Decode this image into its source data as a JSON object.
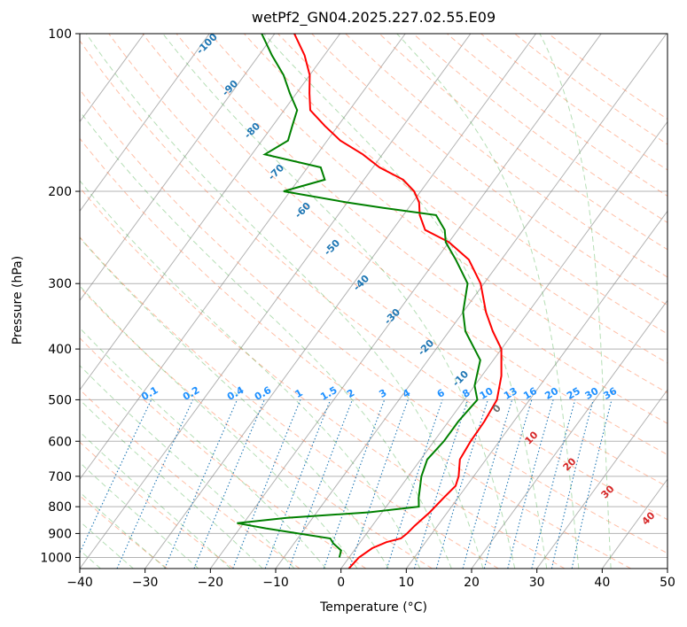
{
  "chart_data": {
    "type": "line",
    "title": "wetPf2_GN04.2025.227.02.55.E09",
    "xlabel": "Temperature (°C)",
    "ylabel": "Pressure (hPa)",
    "xlim": [
      -40,
      50
    ],
    "ylim": [
      1050,
      100
    ],
    "y_scale": "log",
    "x_ticks": [
      -40,
      -30,
      -20,
      -10,
      0,
      10,
      20,
      30,
      40,
      50
    ],
    "y_ticks": [
      100,
      200,
      300,
      400,
      500,
      600,
      700,
      800,
      900,
      1000
    ],
    "grid": true,
    "skew": true,
    "colors": {
      "temperature": "#ff0000",
      "dewpoint": "#008000",
      "dry_adiabat": "#ff7f50",
      "moist_adiabat": "#2ca02c",
      "mixing_ratio": "#1f77b4",
      "mixing_ratio_label": "#1e90ff",
      "isotherm": "#808080",
      "theta_e_label_blue": "#1f77b4",
      "theta_e_label_red": "#d62728"
    },
    "series": [
      {
        "key": "temperature",
        "points": [
          [
            1050,
            1.2
          ],
          [
            1000,
            1.5
          ],
          [
            960,
            2.5
          ],
          [
            935,
            4.0
          ],
          [
            920,
            5.8
          ],
          [
            900,
            6.2
          ],
          [
            870,
            6.5
          ],
          [
            820,
            7.3
          ],
          [
            770,
            7.8
          ],
          [
            730,
            8.3
          ],
          [
            700,
            7.7
          ],
          [
            650,
            6.0
          ],
          [
            600,
            5.6
          ],
          [
            550,
            5.5
          ],
          [
            500,
            5.0
          ],
          [
            450,
            3.0
          ],
          [
            400,
            0.0
          ],
          [
            370,
            -3.3
          ],
          [
            340,
            -6.5
          ],
          [
            300,
            -10.5
          ],
          [
            270,
            -15.0
          ],
          [
            250,
            -20.0
          ],
          [
            237,
            -25.0
          ],
          [
            222,
            -27.5
          ],
          [
            210,
            -29.0
          ],
          [
            200,
            -31.0
          ],
          [
            190,
            -34.0
          ],
          [
            180,
            -39.0
          ],
          [
            170,
            -43.0
          ],
          [
            160,
            -48.0
          ],
          [
            150,
            -52.0
          ],
          [
            140,
            -56.0
          ],
          [
            130,
            -58.0
          ],
          [
            120,
            -60.0
          ],
          [
            110,
            -63.0
          ],
          [
            100,
            -67.0
          ]
        ]
      },
      {
        "key": "dewpoint",
        "points": [
          [
            1000,
            -1.5
          ],
          [
            970,
            -2.0
          ],
          [
            940,
            -4.0
          ],
          [
            920,
            -5.0
          ],
          [
            880,
            -16.0
          ],
          [
            860,
            -21.0
          ],
          [
            840,
            -14.0
          ],
          [
            820,
            -2.0
          ],
          [
            800,
            5.0
          ],
          [
            770,
            4.0
          ],
          [
            700,
            2.0
          ],
          [
            650,
            1.0
          ],
          [
            600,
            1.5
          ],
          [
            550,
            1.5
          ],
          [
            500,
            2.0
          ],
          [
            470,
            0.0
          ],
          [
            420,
            -2.0
          ],
          [
            370,
            -7.5
          ],
          [
            340,
            -10.0
          ],
          [
            300,
            -12.5
          ],
          [
            270,
            -17.0
          ],
          [
            250,
            -20.5
          ],
          [
            237,
            -22.0
          ],
          [
            222,
            -25.0
          ],
          [
            215,
            -34.0
          ],
          [
            210,
            -40.0
          ],
          [
            200,
            -51.0
          ],
          [
            190,
            -46.0
          ],
          [
            180,
            -48.0
          ],
          [
            170,
            -58.0
          ],
          [
            160,
            -56.0
          ],
          [
            150,
            -57.0
          ],
          [
            140,
            -58.0
          ],
          [
            130,
            -61.0
          ],
          [
            120,
            -64.0
          ],
          [
            110,
            -68.0
          ],
          [
            100,
            -72.0
          ]
        ]
      }
    ],
    "theta_e_labels": [
      {
        "p": 111,
        "text": "-100"
      },
      {
        "p": 135,
        "text": "-90"
      },
      {
        "p": 166,
        "text": "-80"
      },
      {
        "p": 195,
        "text": "-70"
      },
      {
        "p": 230,
        "text": "-60"
      },
      {
        "p": 275,
        "text": "-50"
      },
      {
        "p": 325,
        "text": "-40"
      },
      {
        "p": 378,
        "text": "-30"
      },
      {
        "p": 420,
        "text": "-20"
      },
      {
        "p": 472,
        "text": "-10"
      },
      {
        "p": 535,
        "text": "0"
      },
      {
        "p": 612,
        "text": "10"
      },
      {
        "p": 725,
        "text": "20"
      },
      {
        "p": 800,
        "text": "30"
      },
      {
        "p": 885,
        "text": "40"
      }
    ],
    "mixing_ratio_labels": [
      "0.1",
      "0.2",
      "0.4",
      "0.6",
      "1",
      "1.5",
      "2",
      "3",
      "4",
      "6",
      "8",
      "10",
      "13",
      "16",
      "20",
      "25",
      "30",
      "36"
    ]
  }
}
